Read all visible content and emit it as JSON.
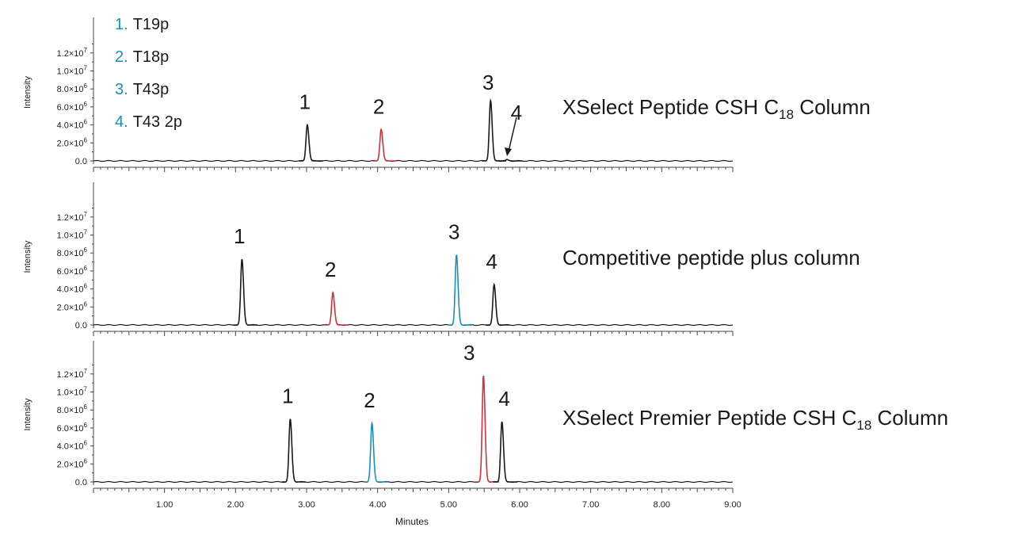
{
  "colors": {
    "black": "#1a1a1a",
    "red": "#d0323c",
    "blue": "#1a8fbf"
  },
  "legend": [
    {
      "num": "1.",
      "text": "T19p"
    },
    {
      "num": "2.",
      "text": "T18p"
    },
    {
      "num": "3.",
      "text": "T43p"
    },
    {
      "num": "4.",
      "text": "T43 2p"
    }
  ],
  "chart_data": {
    "type": "line",
    "xlabel": "Minutes",
    "xlim": [
      0,
      9
    ],
    "x_ticks": [
      "1.00",
      "2.00",
      "3.00",
      "4.00",
      "5.00",
      "6.00",
      "7.00",
      "8.00",
      "9.00"
    ],
    "ylim": [
      0,
      13000000
    ],
    "y_ticks": [
      {
        "value": 0,
        "base": "0.0",
        "exp": ""
      },
      {
        "value": 2000000,
        "base": "2.0×10",
        "exp": "6"
      },
      {
        "value": 4000000,
        "base": "4.0×10",
        "exp": "6"
      },
      {
        "value": 6000000,
        "base": "6.0×10",
        "exp": "6"
      },
      {
        "value": 8000000,
        "base": "8.0×10",
        "exp": "6"
      },
      {
        "value": 10000000,
        "base": "1.0×10",
        "exp": "7"
      },
      {
        "value": 12000000,
        "base": "1.2×10",
        "exp": "7"
      }
    ],
    "panels": [
      {
        "ylabel": "Intensity",
        "label_main": "XSelect Peptide CSH C",
        "label_sub": "18",
        "label_tail": " Column",
        "peaks": [
          {
            "label": "1",
            "t": 3.01,
            "height": 4000000,
            "color": "black"
          },
          {
            "label": "2",
            "t": 4.05,
            "height": 3500000,
            "color": "red"
          },
          {
            "label": "3",
            "t": 5.59,
            "height": 6700000,
            "color": "black"
          },
          {
            "label": "4",
            "t": 5.82,
            "height": 150000,
            "color": "black"
          }
        ]
      },
      {
        "ylabel": "Intensity",
        "label_main": "Competitive peptide plus column",
        "label_sub": "",
        "label_tail": "",
        "peaks": [
          {
            "label": "1",
            "t": 2.09,
            "height": 7300000,
            "color": "black"
          },
          {
            "label": "2",
            "t": 3.37,
            "height": 3600000,
            "color": "red"
          },
          {
            "label": "3",
            "t": 5.11,
            "height": 7800000,
            "color": "blue"
          },
          {
            "label": "4",
            "t": 5.64,
            "height": 4500000,
            "color": "black"
          }
        ]
      },
      {
        "ylabel": "Intensity",
        "label_main": "XSelect Premier Peptide CSH C",
        "label_sub": "18",
        "label_tail": " Column",
        "peaks": [
          {
            "label": "1",
            "t": 2.77,
            "height": 7000000,
            "color": "black"
          },
          {
            "label": "2",
            "t": 3.92,
            "height": 6500000,
            "color": "blue"
          },
          {
            "label": "3",
            "t": 5.49,
            "height": 11800000,
            "color": "red"
          },
          {
            "label": "4",
            "t": 5.75,
            "height": 6700000,
            "color": "black"
          }
        ]
      }
    ]
  }
}
